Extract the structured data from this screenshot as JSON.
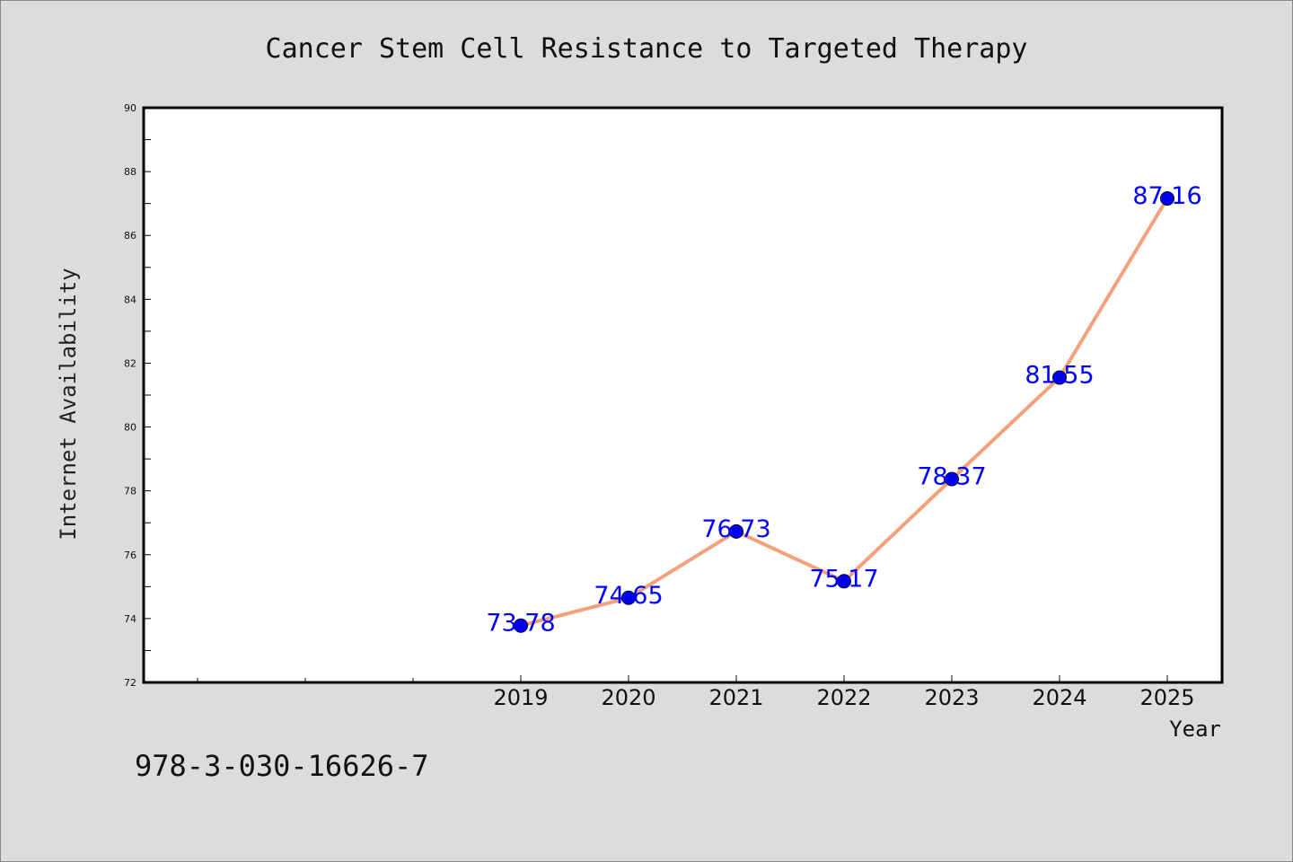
{
  "chart_data": {
    "type": "line",
    "title": "Cancer Stem Cell Resistance to Targeted Therapy",
    "xlabel": "Year",
    "ylabel": "Internet Availability",
    "categories": [
      "2019",
      "2020",
      "2021",
      "2022",
      "2023",
      "2024",
      "2025"
    ],
    "values": [
      73.78,
      74.65,
      76.73,
      75.17,
      78.37,
      81.55,
      87.16
    ],
    "data_labels": [
      "73.78",
      "74.65",
      "76.73",
      "75.17",
      "78.37",
      "81.55",
      "87.16"
    ],
    "ylim": [
      72,
      90
    ],
    "yticks": [
      "72",
      "74",
      "76",
      "78",
      "80",
      "82",
      "84",
      "86",
      "88",
      "90"
    ],
    "grid": false,
    "line_color": "#f4a07a",
    "marker_color": "#0000ee",
    "label_color": "#0000ff"
  },
  "annotation": "978-3-030-16626-7"
}
